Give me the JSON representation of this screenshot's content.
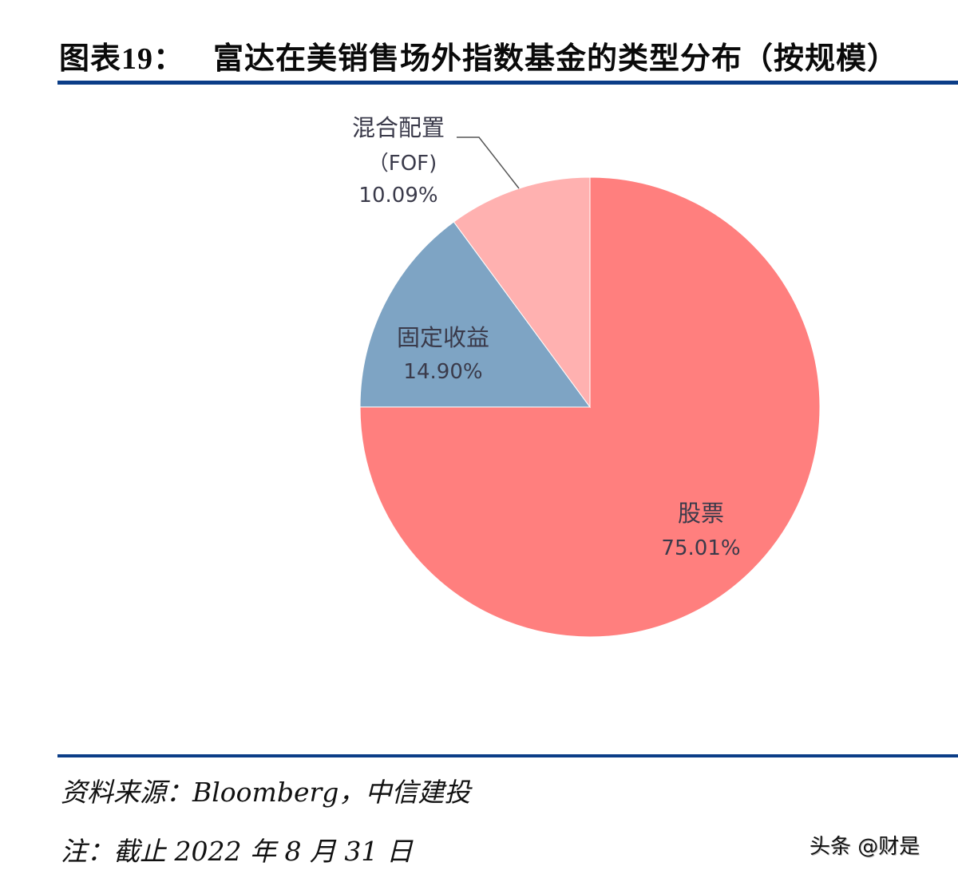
{
  "header": {
    "figure_label": "图表",
    "figure_number": "19",
    "colon": "：",
    "title": "富达在美销售场外指数基金的类型分布（按规模）"
  },
  "colors": {
    "rule": "#0b3d87",
    "equity": "#ff7f7e",
    "fixed_income": "#7ea4c4",
    "mixed": "#ffb1b0"
  },
  "chart_data": {
    "type": "pie",
    "title": "富达在美销售场外指数基金的类型分布（按规模）",
    "start_angle": "12 o'clock, clockwise",
    "slices": [
      {
        "label": "股票",
        "value": 75.01,
        "display": "75.01%",
        "color": "#ff7f7e"
      },
      {
        "label": "固定收益",
        "value": 14.9,
        "display": "14.90%",
        "color": "#7ea4c4"
      },
      {
        "label": "混合配置（FOF)",
        "value": 10.09,
        "display": "10.09%",
        "color": "#ffb1b0"
      }
    ],
    "legend": "none (data labels on/near slices)"
  },
  "labels": {
    "equity": {
      "name": "股票",
      "pct": "75.01%"
    },
    "fixed_income": {
      "name": "固定收益",
      "pct": "14.90%"
    },
    "mixed": {
      "name_line1": "混合配置",
      "name_line2": "（FOF)",
      "pct": "10.09%"
    }
  },
  "footer": {
    "source": "资料来源：Bloomberg，中信建投",
    "note": "注：截止 2022 年 8 月 31 日"
  },
  "watermark": "头条 @财是"
}
